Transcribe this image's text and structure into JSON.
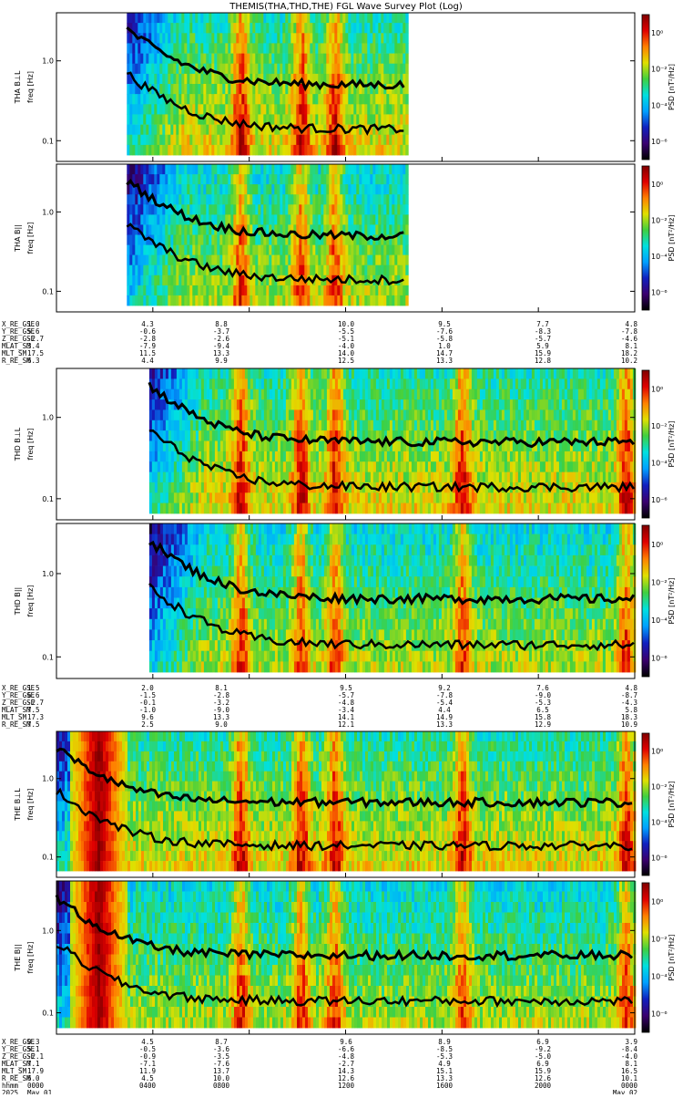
{
  "title": "THEMIS(THA,THD,THE) FGL Wave Survey Plot (Log)",
  "colorbar": {
    "label": "PSD [nT²/Hz]",
    "ticks": [
      "10⁰",
      "10⁻²",
      "10⁻⁴",
      "10⁻⁶"
    ],
    "tick_values_log10": [
      0,
      -2,
      -4,
      -6
    ],
    "range_log10": [
      -7,
      1
    ],
    "colors": [
      "#000000",
      "#3a0070",
      "#1020c0",
      "#00a0ff",
      "#00e0e0",
      "#40d040",
      "#e0e000",
      "#ff8000",
      "#e00000",
      "#800000"
    ]
  },
  "freq_axis": {
    "ticks": [
      "1.0",
      "0.1"
    ],
    "tick_values": [
      1.0,
      0.1
    ],
    "scale": "log"
  },
  "time_axis": {
    "start_hours": 0,
    "end_hours": 24,
    "ephemeris_hours": [
      0,
      4,
      8,
      12,
      16,
      20,
      24
    ]
  },
  "panels": [
    {
      "id": "tha-bl",
      "probe": "THA",
      "ylabel": "THA B⊥L",
      "sublabel": "freq [Hz]",
      "component": "perp",
      "data_start_h": 2.92,
      "data_end_h": 14.5,
      "group": 0
    },
    {
      "id": "tha-bll",
      "probe": "THA",
      "ylabel": "THA B||",
      "sublabel": "freq [Hz]",
      "component": "par",
      "data_start_h": 2.92,
      "data_end_h": 14.5,
      "group": 0
    },
    {
      "id": "thd-bl",
      "probe": "THD",
      "ylabel": "THD B⊥L",
      "sublabel": "freq [Hz]",
      "component": "perp",
      "data_start_h": 3.85,
      "data_end_h": 24,
      "group": 1
    },
    {
      "id": "thd-bll",
      "probe": "THD",
      "ylabel": "THD B||",
      "sublabel": "freq [Hz]",
      "component": "par",
      "data_start_h": 3.85,
      "data_end_h": 24,
      "group": 1
    },
    {
      "id": "the-bl",
      "probe": "THE",
      "ylabel": "THE B⊥L",
      "sublabel": "freq [Hz]",
      "component": "perp",
      "data_start_h": 0,
      "data_end_h": 24,
      "group": 2
    },
    {
      "id": "the-bll",
      "probe": "THE",
      "ylabel": "THE B||",
      "sublabel": "freq [Hz]",
      "component": "par",
      "data_start_h": 0,
      "data_end_h": 24,
      "group": 2
    }
  ],
  "ephemeris": [
    {
      "labels": [
        "X_RE_GSE",
        "Y_RE_GSE",
        "Z_RE_GSE",
        "MLAT_SM",
        "MLT_SM",
        "R_RE_SM"
      ],
      "columns": [
        [
          "1.0",
          "5.6",
          "-2.7",
          "3.4",
          "17.5",
          "6.3"
        ],
        [
          "4.3",
          "-0.6",
          "-2.8",
          "-7.9",
          "11.5",
          "4.4"
        ],
        [
          "8.8",
          "-3.7",
          "-2.6",
          "-9.4",
          "13.3",
          "9.9"
        ],
        [
          "10.0",
          "-5.5",
          "-5.1",
          "-4.0",
          "14.0",
          "12.5"
        ],
        [
          "9.5",
          "-7.6",
          "-5.8",
          "1.0",
          "14.7",
          "13.3"
        ],
        [
          "7.7",
          "-8.3",
          "-5.7",
          "5.9",
          "15.9",
          "12.8"
        ],
        [
          "4.8",
          "-7.8",
          "-4.6",
          "8.1",
          "18.2",
          "10.2"
        ]
      ]
    },
    {
      "labels": [
        "X_RE_GSE",
        "Y_RE_GSE",
        "Z_RE_GSE",
        "MLAT_SM",
        "MLT_SM",
        "R_RE_SM"
      ],
      "columns": [
        [
          "1.5",
          "6.6",
          "-2.7",
          "7.5",
          "17.3",
          "7.5"
        ],
        [
          "2.0",
          "-1.5",
          "-0.1",
          "-1.0",
          "9.6",
          "2.5"
        ],
        [
          "8.1",
          "-2.8",
          "-3.2",
          "-9.0",
          "13.3",
          "9.0"
        ],
        [
          "9.5",
          "-5.7",
          "-4.8",
          "-3.4",
          "14.1",
          "12.1"
        ],
        [
          "9.2",
          "-7.8",
          "-5.4",
          "4.4",
          "14.9",
          "13.3"
        ],
        [
          "7.6",
          "-9.0",
          "-5.3",
          "6.5",
          "15.8",
          "12.9"
        ],
        [
          "4.8",
          "-8.7",
          "-4.3",
          "5.8",
          "18.3",
          "10.9"
        ]
      ]
    },
    {
      "labels": [
        "X_RE_GSE",
        "Y_RE_GSE",
        "Z_RE_GSE",
        "MLAT_SM",
        "MLT_SM",
        "R_RE_SM",
        "hhmm",
        "2025"
      ],
      "columns": [
        [
          "0.3",
          "5.1",
          "-2.1",
          "7.1",
          "17.9",
          "6.0",
          "0000",
          "May 01"
        ],
        [
          "4.5",
          "-0.5",
          "-0.9",
          "-7.1",
          "11.9",
          "4.5",
          "0400",
          ""
        ],
        [
          "8.7",
          "-3.6",
          "-3.5",
          "-7.6",
          "13.7",
          "10.0",
          "0800",
          ""
        ],
        [
          "9.6",
          "-6.6",
          "-4.8",
          "-2.7",
          "14.3",
          "12.6",
          "1200",
          ""
        ],
        [
          "8.9",
          "-8.5",
          "-5.3",
          "4.9",
          "15.1",
          "13.3",
          "1600",
          ""
        ],
        [
          "6.9",
          "-9.2",
          "-5.0",
          "6.9",
          "15.9",
          "12.6",
          "2000",
          ""
        ],
        [
          "3.9",
          "-8.4",
          "-4.0",
          "8.1",
          "16.5",
          "10.1",
          "0000",
          "May 02"
        ]
      ]
    }
  ]
}
